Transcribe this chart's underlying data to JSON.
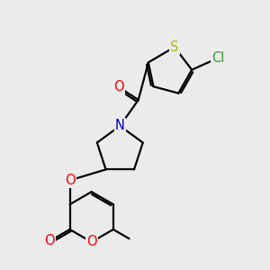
{
  "bg_color": "#ebebeb",
  "bond_color": "#000000",
  "bond_width": 1.6,
  "atom_colors": {
    "O": "#ff0000",
    "N": "#0000cc",
    "S": "#b8b800",
    "Cl": "#3a9e3a",
    "C": "#000000"
  },
  "font_size_atom": 10.5,
  "title": ""
}
